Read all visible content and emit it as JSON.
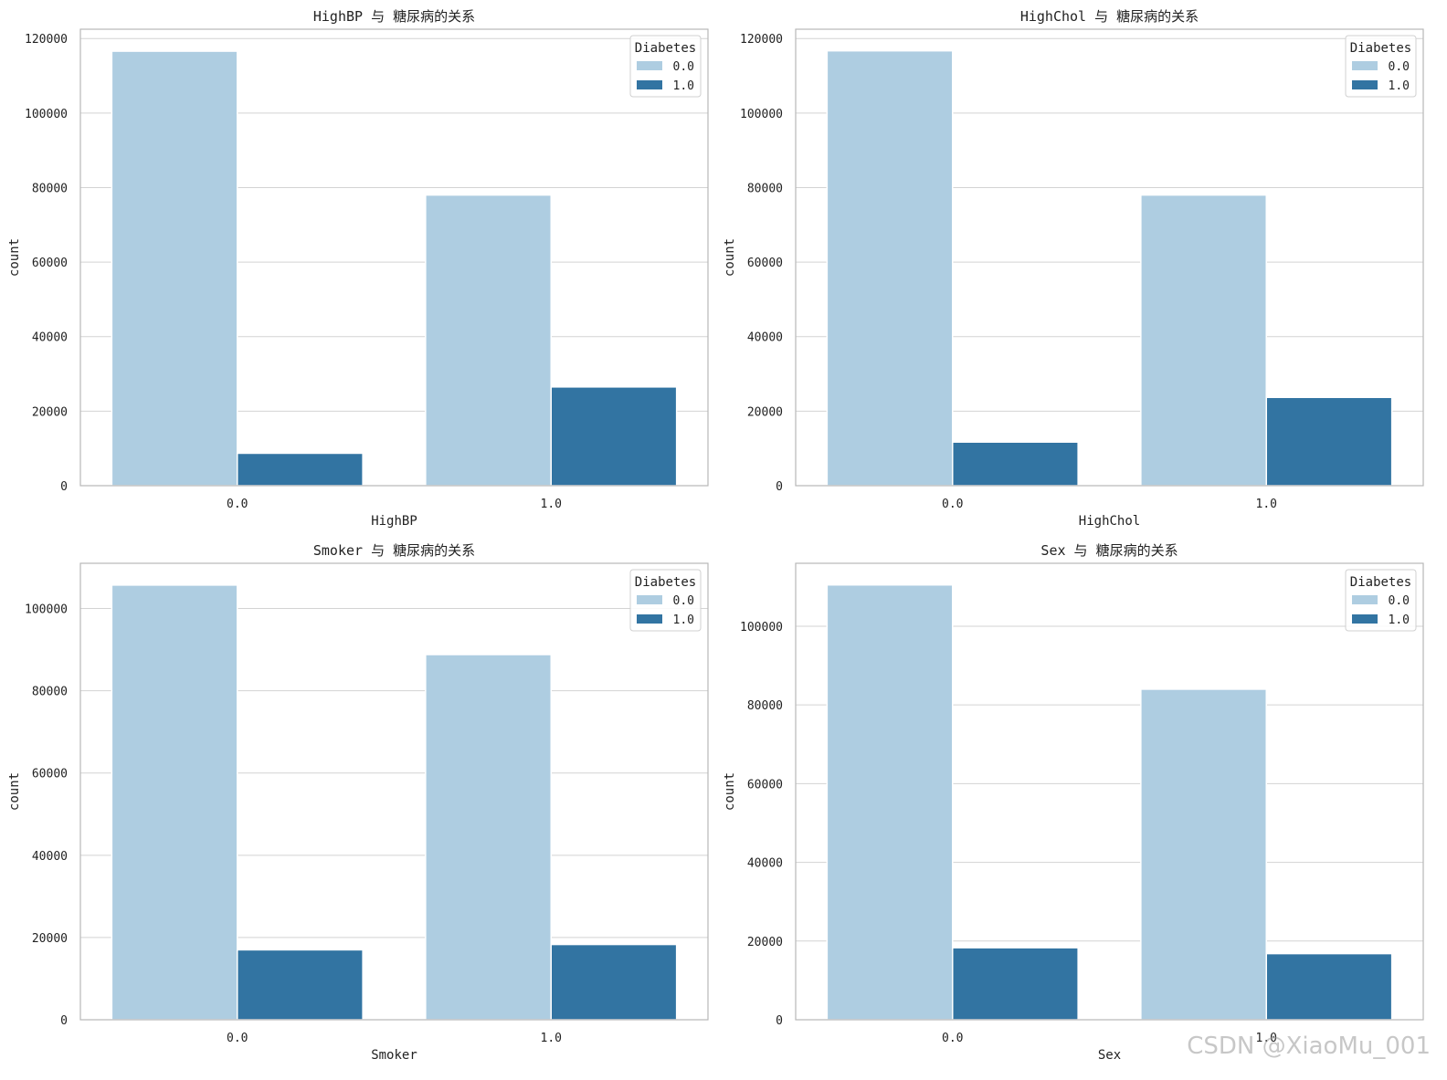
{
  "colors": {
    "series_0": "#aecde1",
    "series_1": "#3274a2",
    "grid": "#d3d3d3",
    "frame": "#b8b8b8"
  },
  "watermark": "CSDN @XiaoMu_001",
  "chart_data": [
    {
      "type": "bar",
      "title": "HighBP 与 糖尿病的关系",
      "xlabel": "HighBP",
      "ylabel": "count",
      "categories": [
        "0.0",
        "1.0"
      ],
      "legend_title": "Diabetes",
      "legend_position": "top-right",
      "grid": true,
      "ylim": [
        0,
        122500
      ],
      "yticks": [
        0,
        20000,
        40000,
        60000,
        80000,
        100000,
        120000
      ],
      "series": [
        {
          "name": "0.0",
          "values": [
            116600,
            78000
          ]
        },
        {
          "name": "1.0",
          "values": [
            8700,
            26500
          ]
        }
      ]
    },
    {
      "type": "bar",
      "title": "HighChol 与 糖尿病的关系",
      "xlabel": "HighChol",
      "ylabel": "count",
      "categories": [
        "0.0",
        "1.0"
      ],
      "legend_title": "Diabetes",
      "legend_position": "top-right",
      "grid": true,
      "ylim": [
        0,
        122500
      ],
      "yticks": [
        0,
        20000,
        40000,
        60000,
        80000,
        100000,
        120000
      ],
      "series": [
        {
          "name": "0.0",
          "values": [
            116700,
            78000
          ]
        },
        {
          "name": "1.0",
          "values": [
            11700,
            23700
          ]
        }
      ]
    },
    {
      "type": "bar",
      "title": "Smoker 与 糖尿病的关系",
      "xlabel": "Smoker",
      "ylabel": "count",
      "categories": [
        "0.0",
        "1.0"
      ],
      "legend_title": "Diabetes",
      "legend_position": "top-right",
      "grid": true,
      "ylim": [
        0,
        111000
      ],
      "yticks": [
        0,
        20000,
        40000,
        60000,
        80000,
        100000
      ],
      "series": [
        {
          "name": "0.0",
          "values": [
            105700,
            88800
          ]
        },
        {
          "name": "1.0",
          "values": [
            17000,
            18300
          ]
        }
      ]
    },
    {
      "type": "bar",
      "title": "Sex 与 糖尿病的关系",
      "xlabel": "Sex",
      "ylabel": "count",
      "categories": [
        "0.0",
        "1.0"
      ],
      "legend_title": "Diabetes",
      "legend_position": "top-right",
      "grid": true,
      "ylim": [
        0,
        116000
      ],
      "yticks": [
        0,
        20000,
        40000,
        60000,
        80000,
        100000
      ],
      "series": [
        {
          "name": "0.0",
          "values": [
            110500,
            84000
          ]
        },
        {
          "name": "1.0",
          "values": [
            18300,
            16800
          ]
        }
      ]
    }
  ]
}
